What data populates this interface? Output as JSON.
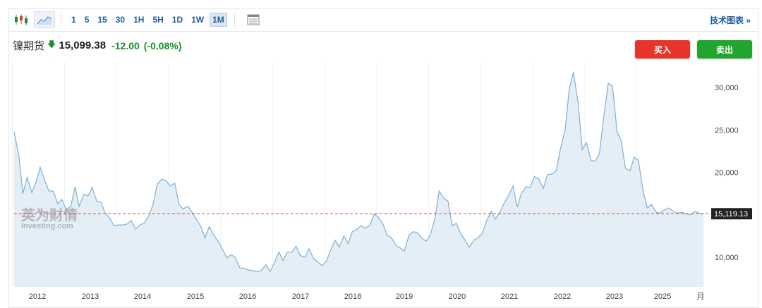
{
  "toolbar": {
    "timeframes": [
      "1",
      "5",
      "15",
      "30",
      "1H",
      "5H",
      "1D",
      "1W",
      "1M"
    ],
    "active_timeframe": "1M",
    "right_link": "技术图表 »",
    "icons": [
      "candlestick-icon",
      "area-chart-icon",
      "table-icon"
    ]
  },
  "header": {
    "instrument": "镍期货",
    "price": "15,099.38",
    "change": "-12.00",
    "change_pct": "(-0.08%)"
  },
  "buttons": {
    "buy": "买入",
    "sell": "卖出"
  },
  "watermark": {
    "cn": "英为财情",
    "en": "Investing.com"
  },
  "colors": {
    "line": "#7fb0d6",
    "fill": "#e4eef6",
    "ref_line": "#d8433b",
    "up_green": "#1a8f2d",
    "buy_red": "#e8352b",
    "sell_green": "#21a52f",
    "label_bg": "#222222"
  },
  "chart_data": {
    "type": "area",
    "x_labels": [
      "2012",
      "2013",
      "2014",
      "2015",
      "2016",
      "2017",
      "2018",
      "2019",
      "2020",
      "2021",
      "2022",
      "2023",
      "2025",
      "月"
    ],
    "y_ticks": [
      "10,000",
      "15,000",
      "20,000",
      "25,000",
      "30,000"
    ],
    "ylim": [
      6500,
      33000
    ],
    "ref_value": 15119.13,
    "ref_label": "15,119.13",
    "series": [
      {
        "values": [
          [
            2011.58,
            24800
          ],
          [
            2011.67,
            22000
          ],
          [
            2011.75,
            17500
          ],
          [
            2011.83,
            19400
          ],
          [
            2011.92,
            17600
          ],
          [
            2012.0,
            18800
          ],
          [
            2012.08,
            20600
          ],
          [
            2012.17,
            19000
          ],
          [
            2012.25,
            17800
          ],
          [
            2012.33,
            17800
          ],
          [
            2012.42,
            16300
          ],
          [
            2012.5,
            16800
          ],
          [
            2012.58,
            15600
          ],
          [
            2012.67,
            16000
          ],
          [
            2012.75,
            18300
          ],
          [
            2012.83,
            16000
          ],
          [
            2012.92,
            17400
          ],
          [
            2013.0,
            17200
          ],
          [
            2013.08,
            18200
          ],
          [
            2013.17,
            16600
          ],
          [
            2013.25,
            16500
          ],
          [
            2013.33,
            15200
          ],
          [
            2013.42,
            14600
          ],
          [
            2013.5,
            13700
          ],
          [
            2013.58,
            13800
          ],
          [
            2013.67,
            13800
          ],
          [
            2013.75,
            13900
          ],
          [
            2013.83,
            14300
          ],
          [
            2013.92,
            13300
          ],
          [
            2014.0,
            13800
          ],
          [
            2014.08,
            14000
          ],
          [
            2014.17,
            14900
          ],
          [
            2014.25,
            16200
          ],
          [
            2014.33,
            18600
          ],
          [
            2014.42,
            19200
          ],
          [
            2014.5,
            19000
          ],
          [
            2014.58,
            18400
          ],
          [
            2014.67,
            18700
          ],
          [
            2014.75,
            16200
          ],
          [
            2014.83,
            15700
          ],
          [
            2014.92,
            16000
          ],
          [
            2015.0,
            15300
          ],
          [
            2015.08,
            14500
          ],
          [
            2015.17,
            13600
          ],
          [
            2015.25,
            12300
          ],
          [
            2015.33,
            13600
          ],
          [
            2015.42,
            12600
          ],
          [
            2015.5,
            11900
          ],
          [
            2015.58,
            11000
          ],
          [
            2015.67,
            9900
          ],
          [
            2015.75,
            10300
          ],
          [
            2015.83,
            10000
          ],
          [
            2015.92,
            8700
          ],
          [
            2016.0,
            8700
          ],
          [
            2016.08,
            8500
          ],
          [
            2016.17,
            8400
          ],
          [
            2016.25,
            8300
          ],
          [
            2016.33,
            8400
          ],
          [
            2016.42,
            9100
          ],
          [
            2016.5,
            8300
          ],
          [
            2016.58,
            9300
          ],
          [
            2016.67,
            10600
          ],
          [
            2016.75,
            9600
          ],
          [
            2016.83,
            10600
          ],
          [
            2016.92,
            10600
          ],
          [
            2017.0,
            11300
          ],
          [
            2017.08,
            10200
          ],
          [
            2017.17,
            10000
          ],
          [
            2017.25,
            11000
          ],
          [
            2017.33,
            9900
          ],
          [
            2017.42,
            9400
          ],
          [
            2017.5,
            9000
          ],
          [
            2017.58,
            9500
          ],
          [
            2017.67,
            10900
          ],
          [
            2017.75,
            12000
          ],
          [
            2017.83,
            11200
          ],
          [
            2017.92,
            12500
          ],
          [
            2018.0,
            11600
          ],
          [
            2018.08,
            13000
          ],
          [
            2018.17,
            13300
          ],
          [
            2018.25,
            13700
          ],
          [
            2018.33,
            13400
          ],
          [
            2018.42,
            13800
          ],
          [
            2018.5,
            15100
          ],
          [
            2018.58,
            14700
          ],
          [
            2018.67,
            13900
          ],
          [
            2018.75,
            12600
          ],
          [
            2018.83,
            12300
          ],
          [
            2018.92,
            11400
          ],
          [
            2019.0,
            11100
          ],
          [
            2019.08,
            10700
          ],
          [
            2019.17,
            12600
          ],
          [
            2019.25,
            13000
          ],
          [
            2019.33,
            12900
          ],
          [
            2019.42,
            12200
          ],
          [
            2019.5,
            11900
          ],
          [
            2019.58,
            12600
          ],
          [
            2019.67,
            14600
          ],
          [
            2019.75,
            17800
          ],
          [
            2019.83,
            17000
          ],
          [
            2019.92,
            16600
          ],
          [
            2020.0,
            13700
          ],
          [
            2020.08,
            14000
          ],
          [
            2020.17,
            12700
          ],
          [
            2020.25,
            12000
          ],
          [
            2020.33,
            11200
          ],
          [
            2020.42,
            12000
          ],
          [
            2020.5,
            12300
          ],
          [
            2020.58,
            12800
          ],
          [
            2020.67,
            14400
          ],
          [
            2020.75,
            15400
          ],
          [
            2020.83,
            14500
          ],
          [
            2020.92,
            15300
          ],
          [
            2021.0,
            16400
          ],
          [
            2021.08,
            17200
          ],
          [
            2021.17,
            18400
          ],
          [
            2021.25,
            15900
          ],
          [
            2021.33,
            17500
          ],
          [
            2021.42,
            18300
          ],
          [
            2021.5,
            18200
          ],
          [
            2021.58,
            19500
          ],
          [
            2021.67,
            19200
          ],
          [
            2021.75,
            18100
          ],
          [
            2021.83,
            19700
          ],
          [
            2021.92,
            19800
          ],
          [
            2022.0,
            20200
          ],
          [
            2022.08,
            22700
          ],
          [
            2022.17,
            25000
          ],
          [
            2022.25,
            29800
          ],
          [
            2022.33,
            31800
          ],
          [
            2022.42,
            28200
          ],
          [
            2022.5,
            22700
          ],
          [
            2022.58,
            23500
          ],
          [
            2022.67,
            21400
          ],
          [
            2022.75,
            21300
          ],
          [
            2022.83,
            22200
          ],
          [
            2022.92,
            26900
          ],
          [
            2023.0,
            30500
          ],
          [
            2023.08,
            30200
          ],
          [
            2023.17,
            24800
          ],
          [
            2023.25,
            23700
          ],
          [
            2023.33,
            20500
          ],
          [
            2023.42,
            20200
          ],
          [
            2023.5,
            21800
          ],
          [
            2023.58,
            21400
          ],
          [
            2023.67,
            17800
          ],
          [
            2023.75,
            15800
          ],
          [
            2023.83,
            16200
          ],
          [
            2023.92,
            15300
          ],
          [
            2024.0,
            15200
          ],
          [
            2024.08,
            15600
          ],
          [
            2024.17,
            15800
          ],
          [
            2024.25,
            15400
          ],
          [
            2024.33,
            15200
          ],
          [
            2024.42,
            15300
          ],
          [
            2024.5,
            15100
          ],
          [
            2024.58,
            15000
          ],
          [
            2024.67,
            15400
          ],
          [
            2024.75,
            15200
          ],
          [
            2024.83,
            15099
          ]
        ]
      }
    ]
  }
}
